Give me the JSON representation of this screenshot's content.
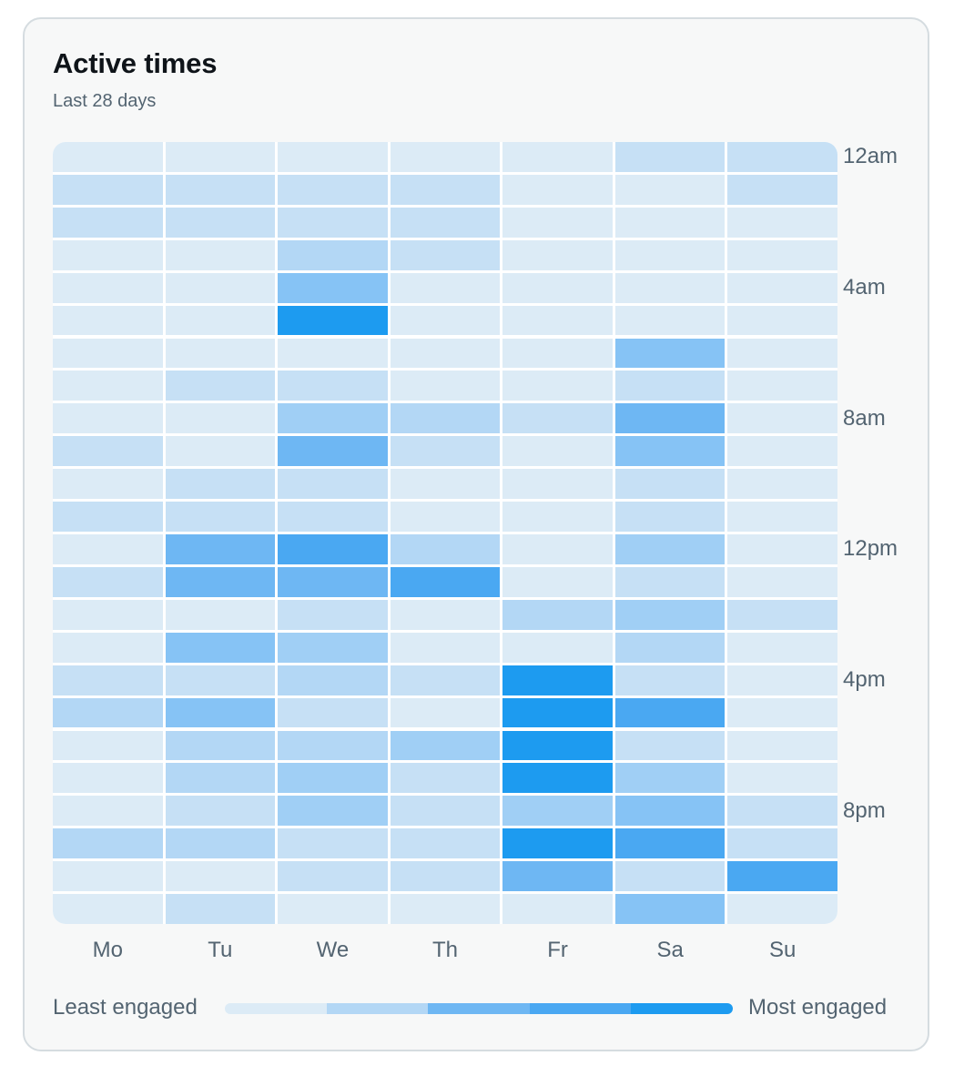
{
  "title": "Active times",
  "subtitle": "Last 28 days",
  "legend": {
    "least": "Least engaged",
    "most": "Most engaged"
  },
  "colors": [
    "#dcebf6",
    "#c6e0f5",
    "#b3d7f5",
    "#a0cff5",
    "#86c3f5",
    "#6eb7f3",
    "#4aa8f2",
    "#1d9bf0"
  ],
  "chart_data": {
    "type": "heatmap",
    "x": [
      "Mo",
      "Tu",
      "We",
      "Th",
      "Fr",
      "Sa",
      "Su"
    ],
    "y_tick_labels": [
      {
        "row": 0,
        "label": "12am"
      },
      {
        "row": 4,
        "label": "4am"
      },
      {
        "row": 8,
        "label": "8am"
      },
      {
        "row": 12,
        "label": "12pm"
      },
      {
        "row": 16,
        "label": "4pm"
      },
      {
        "row": 20,
        "label": "8pm"
      }
    ],
    "values": [
      [
        0,
        0,
        0,
        0,
        0,
        1,
        1
      ],
      [
        1,
        1,
        1,
        1,
        0,
        0,
        1
      ],
      [
        1,
        1,
        1,
        1,
        0,
        0,
        0
      ],
      [
        0,
        0,
        2,
        1,
        0,
        0,
        0
      ],
      [
        0,
        0,
        4,
        0,
        0,
        0,
        0
      ],
      [
        0,
        0,
        7,
        0,
        0,
        0,
        0
      ],
      [
        0,
        0,
        0,
        0,
        0,
        4,
        0
      ],
      [
        0,
        1,
        1,
        0,
        0,
        1,
        0
      ],
      [
        0,
        0,
        3,
        2,
        1,
        5,
        0
      ],
      [
        1,
        0,
        5,
        1,
        0,
        4,
        0
      ],
      [
        0,
        1,
        1,
        0,
        0,
        1,
        0
      ],
      [
        1,
        1,
        1,
        0,
        0,
        1,
        0
      ],
      [
        0,
        5,
        6,
        2,
        0,
        3,
        0
      ],
      [
        1,
        5,
        5,
        6,
        0,
        1,
        0
      ],
      [
        0,
        0,
        1,
        0,
        2,
        3,
        1
      ],
      [
        0,
        4,
        3,
        0,
        0,
        2,
        0
      ],
      [
        1,
        1,
        2,
        1,
        7,
        1,
        0
      ],
      [
        2,
        4,
        1,
        0,
        7,
        6,
        0
      ],
      [
        0,
        2,
        2,
        3,
        7,
        1,
        0
      ],
      [
        0,
        2,
        3,
        1,
        7,
        3,
        0
      ],
      [
        0,
        1,
        3,
        1,
        3,
        4,
        1
      ],
      [
        2,
        2,
        1,
        1,
        7,
        6,
        1
      ],
      [
        0,
        0,
        1,
        1,
        5,
        1,
        6
      ],
      [
        0,
        1,
        0,
        0,
        0,
        4,
        0
      ]
    ],
    "scale_min": 0,
    "scale_max": 7,
    "legend_position": "bottom"
  }
}
